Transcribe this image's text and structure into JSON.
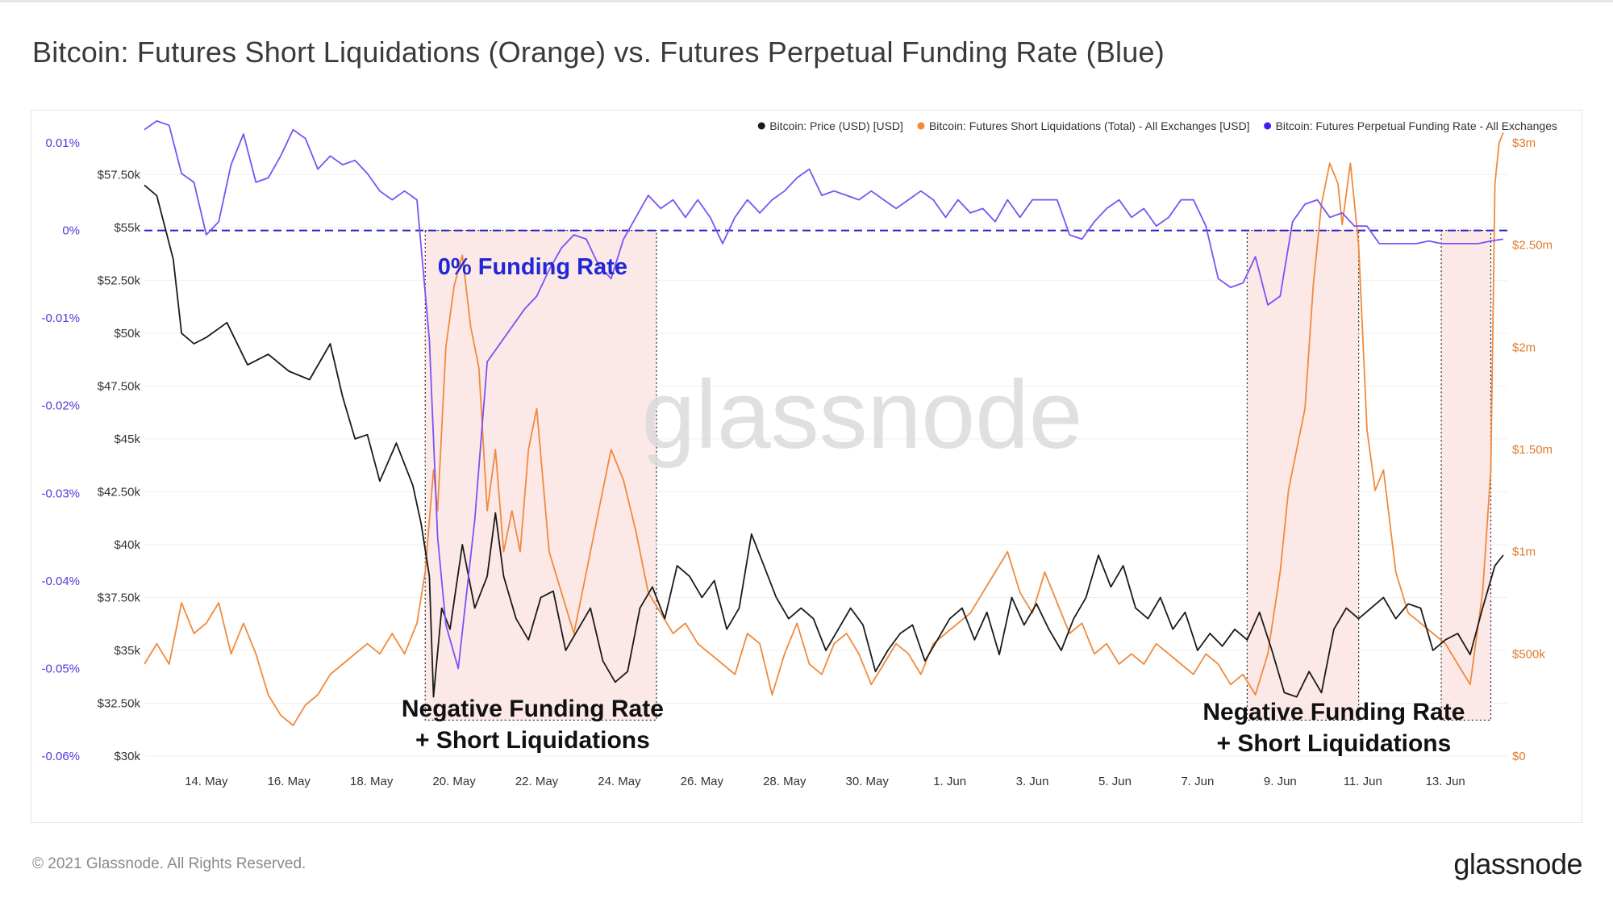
{
  "title": "Bitcoin: Futures Short Liquidations (Orange) vs. Futures Perpetual Funding Rate (Blue)",
  "footer": {
    "copyright": "© 2021 Glassnode. All Rights Reserved.",
    "logo": "glassnode"
  },
  "watermark": "glassnode",
  "colors": {
    "price": "#1a1a1a",
    "liquidations": "#f08a3c",
    "funding": "#7b52f5",
    "zero_line": "#2626c8",
    "shade": "#fde8e8",
    "annotation_blue": "#1f28d6"
  },
  "chart_data": {
    "type": "line",
    "title": "Bitcoin: Futures Short Liquidations (Orange) vs. Futures Perpetual Funding Rate (Blue)",
    "x_tick_labels": [
      "14. May",
      "16. May",
      "18. May",
      "20. May",
      "22. May",
      "24. May",
      "26. May",
      "28. May",
      "30. May",
      "1. Jun",
      "3. Jun",
      "5. Jun",
      "7. Jun",
      "9. Jun",
      "11. Jun",
      "13. Jun"
    ],
    "x_range": [
      12.5,
      45.5
    ],
    "x_note": "x values are days counted from May 1 (14. May = 14, 1. Jun = 32)",
    "axes": {
      "price": {
        "range": [
          30000,
          59000
        ],
        "ticks": [
          30000,
          32500,
          35000,
          37500,
          40000,
          42500,
          45000,
          47500,
          50000,
          52500,
          55000,
          57500
        ],
        "tick_labels": [
          "$30k",
          "$32.50k",
          "$35k",
          "$37.50k",
          "$40k",
          "$42.50k",
          "$45k",
          "$47.50k",
          "$50k",
          "$52.50k",
          "$55k",
          "$57.50k"
        ]
      },
      "funding": {
        "range": [
          -0.06,
          0.01
        ],
        "ticks": [
          -0.06,
          -0.05,
          -0.04,
          -0.03,
          -0.02,
          -0.01,
          0,
          0.01
        ],
        "tick_labels": [
          "-0.06%",
          "-0.05%",
          "-0.04%",
          "-0.03%",
          "-0.02%",
          "-0.01%",
          "0%",
          "0.01%"
        ]
      },
      "liquidations": {
        "range": [
          0,
          3000000
        ],
        "ticks": [
          0,
          500000,
          1000000,
          1500000,
          2000000,
          2500000,
          3000000
        ],
        "tick_labels": [
          "$0",
          "$500k",
          "$1m",
          "$1.50m",
          "$2m",
          "$2.50m",
          "$3m"
        ]
      }
    },
    "legend": [
      {
        "label": "Bitcoin: Price (USD) [USD]",
        "color": "#1a1a1a"
      },
      {
        "label": "Bitcoin: Futures Short Liquidations (Total) - All Exchanges [USD]",
        "color": "#f08a3c"
      },
      {
        "label": "Bitcoin: Futures Perpetual Funding Rate - All Exchanges",
        "color": "#3b22e8"
      }
    ],
    "series": [
      {
        "name": "Bitcoin: Price (USD) [USD]",
        "axis": "price",
        "x": [
          12.5,
          12.8,
          13.0,
          13.2,
          13.4,
          13.7,
          14.0,
          14.5,
          15.0,
          15.5,
          16.0,
          16.5,
          17.0,
          17.3,
          17.6,
          17.9,
          18.2,
          18.6,
          19.0,
          19.2,
          19.4,
          19.5,
          19.7,
          19.9,
          20.2,
          20.5,
          20.8,
          21.0,
          21.2,
          21.5,
          21.8,
          22.1,
          22.4,
          22.7,
          23.0,
          23.3,
          23.6,
          23.9,
          24.2,
          24.5,
          24.8,
          25.1,
          25.4,
          25.7,
          26.0,
          26.3,
          26.6,
          26.9,
          27.2,
          27.5,
          27.8,
          28.1,
          28.4,
          28.7,
          29.0,
          29.3,
          29.6,
          29.9,
          30.2,
          30.5,
          30.8,
          31.1,
          31.4,
          31.7,
          32.0,
          32.3,
          32.6,
          32.9,
          33.2,
          33.5,
          33.8,
          34.1,
          34.4,
          34.7,
          35.0,
          35.3,
          35.6,
          35.9,
          36.2,
          36.5,
          36.8,
          37.1,
          37.4,
          37.7,
          38.0,
          38.3,
          38.6,
          38.9,
          39.2,
          39.5,
          39.8,
          40.1,
          40.4,
          40.7,
          41.0,
          41.3,
          41.6,
          41.9,
          42.2,
          42.5,
          42.8,
          43.1,
          43.4,
          43.7,
          44.0,
          44.3,
          44.6,
          44.9,
          45.2,
          45.4
        ],
        "y": [
          57000,
          56500,
          55000,
          53500,
          50000,
          49500,
          49800,
          50500,
          48500,
          49000,
          48200,
          47800,
          49500,
          47000,
          45000,
          45200,
          43000,
          44800,
          42800,
          41000,
          38500,
          32800,
          37000,
          36000,
          40000,
          37000,
          38500,
          41500,
          38500,
          36500,
          35500,
          37500,
          37800,
          35000,
          36000,
          37000,
          34500,
          33500,
          34000,
          37000,
          38000,
          36500,
          39000,
          38500,
          37500,
          38300,
          36000,
          37000,
          40500,
          39000,
          37500,
          36500,
          37000,
          36500,
          35000,
          36000,
          37000,
          36200,
          34000,
          35000,
          35800,
          36200,
          34500,
          35500,
          36500,
          37000,
          35500,
          36800,
          34800,
          37500,
          36200,
          37200,
          36000,
          35000,
          36500,
          37500,
          39500,
          38000,
          39000,
          37000,
          36500,
          37500,
          36000,
          36800,
          35000,
          35800,
          35200,
          36000,
          35500,
          36800,
          35000,
          33000,
          32800,
          34000,
          33000,
          36000,
          37000,
          36500,
          37000,
          37500,
          36500,
          37200,
          37000,
          35000,
          35500,
          35800,
          34800,
          37000,
          39000,
          39500
        ]
      },
      {
        "name": "Bitcoin: Futures Short Liquidations (Total) - All Exchanges [USD]",
        "axis": "liquidations",
        "x": [
          12.5,
          12.8,
          13.1,
          13.4,
          13.7,
          14.0,
          14.3,
          14.6,
          14.9,
          15.2,
          15.5,
          15.8,
          16.1,
          16.4,
          16.7,
          17.0,
          17.3,
          17.6,
          17.9,
          18.2,
          18.5,
          18.8,
          19.1,
          19.3,
          19.5,
          19.6,
          19.8,
          20.0,
          20.2,
          20.4,
          20.6,
          20.8,
          21.0,
          21.2,
          21.4,
          21.6,
          21.8,
          22.0,
          22.3,
          22.6,
          22.9,
          23.2,
          23.5,
          23.8,
          24.1,
          24.4,
          24.7,
          25.0,
          25.3,
          25.6,
          25.9,
          26.2,
          26.5,
          26.8,
          27.1,
          27.4,
          27.7,
          28.0,
          28.3,
          28.6,
          28.9,
          29.2,
          29.5,
          29.8,
          30.1,
          30.4,
          30.7,
          31.0,
          31.3,
          31.6,
          31.9,
          32.2,
          32.5,
          32.8,
          33.1,
          33.4,
          33.7,
          34.0,
          34.3,
          34.6,
          34.9,
          35.2,
          35.5,
          35.8,
          36.1,
          36.4,
          36.7,
          37.0,
          37.3,
          37.6,
          37.9,
          38.2,
          38.5,
          38.8,
          39.1,
          39.4,
          39.7,
          40.0,
          40.2,
          40.4,
          40.6,
          40.8,
          41.0,
          41.2,
          41.4,
          41.5,
          41.7,
          41.9,
          42.1,
          42.3,
          42.5,
          42.8,
          43.1,
          43.4,
          43.7,
          44.0,
          44.3,
          44.6,
          44.9,
          45.1,
          45.2,
          45.3,
          45.4
        ],
        "y": [
          450000,
          550000,
          450000,
          750000,
          600000,
          650000,
          750000,
          500000,
          650000,
          500000,
          300000,
          200000,
          150000,
          250000,
          300000,
          400000,
          450000,
          500000,
          550000,
          500000,
          600000,
          500000,
          650000,
          900000,
          1400000,
          1200000,
          2000000,
          2300000,
          2450000,
          2100000,
          1900000,
          1200000,
          1500000,
          1000000,
          1200000,
          1000000,
          1500000,
          1700000,
          1000000,
          800000,
          600000,
          900000,
          1200000,
          1500000,
          1350000,
          1100000,
          800000,
          700000,
          600000,
          650000,
          550000,
          500000,
          450000,
          400000,
          600000,
          550000,
          300000,
          500000,
          650000,
          450000,
          400000,
          550000,
          600000,
          500000,
          350000,
          450000,
          550000,
          500000,
          400000,
          550000,
          600000,
          650000,
          700000,
          800000,
          900000,
          1000000,
          800000,
          700000,
          900000,
          750000,
          600000,
          650000,
          500000,
          550000,
          450000,
          500000,
          450000,
          550000,
          500000,
          450000,
          400000,
          500000,
          450000,
          350000,
          400000,
          300000,
          500000,
          900000,
          1300000,
          1500000,
          1700000,
          2300000,
          2700000,
          2900000,
          2800000,
          2600000,
          2900000,
          2500000,
          1600000,
          1300000,
          1400000,
          900000,
          700000,
          650000,
          600000,
          550000,
          450000,
          350000,
          800000,
          1400000,
          2800000,
          3000000,
          3050000
        ]
      },
      {
        "name": "Bitcoin: Futures Perpetual Funding Rate - All Exchanges",
        "axis": "funding",
        "x": [
          12.5,
          12.8,
          13.1,
          13.4,
          13.7,
          14.0,
          14.3,
          14.6,
          14.9,
          15.2,
          15.5,
          15.8,
          16.1,
          16.4,
          16.7,
          17.0,
          17.3,
          17.6,
          17.9,
          18.2,
          18.5,
          18.8,
          19.1,
          19.4,
          19.6,
          19.8,
          20.1,
          20.5,
          20.8,
          21.1,
          21.4,
          21.7,
          22.0,
          22.3,
          22.6,
          22.9,
          23.2,
          23.5,
          23.8,
          24.1,
          24.4,
          24.7,
          25.0,
          25.3,
          25.6,
          25.9,
          26.2,
          26.5,
          26.8,
          27.1,
          27.4,
          27.7,
          28.0,
          28.3,
          28.6,
          28.9,
          29.2,
          29.5,
          29.8,
          30.1,
          30.4,
          30.7,
          31.0,
          31.3,
          31.6,
          31.9,
          32.2,
          32.5,
          32.8,
          33.1,
          33.4,
          33.7,
          34.0,
          34.3,
          34.6,
          34.9,
          35.2,
          35.5,
          35.8,
          36.1,
          36.4,
          36.7,
          37.0,
          37.3,
          37.6,
          37.9,
          38.2,
          38.5,
          38.8,
          39.1,
          39.4,
          39.7,
          40.0,
          40.3,
          40.6,
          40.9,
          41.2,
          41.5,
          41.8,
          42.1,
          42.4,
          42.7,
          43.0,
          43.3,
          43.6,
          43.9,
          44.2,
          44.5,
          44.8,
          45.1,
          45.4
        ],
        "y": [
          0.0115,
          0.0125,
          0.012,
          0.0065,
          0.0055,
          -0.0005,
          0.001,
          0.0075,
          0.011,
          0.0055,
          0.006,
          0.0085,
          0.0115,
          0.0105,
          0.007,
          0.0085,
          0.0075,
          0.008,
          0.0065,
          0.0045,
          0.0035,
          0.0045,
          0.0035,
          -0.0125,
          -0.035,
          -0.045,
          -0.05,
          -0.033,
          -0.015,
          -0.013,
          -0.011,
          -0.009,
          -0.0075,
          -0.0045,
          -0.002,
          -0.0005,
          -0.001,
          -0.004,
          -0.0055,
          -0.001,
          0.0015,
          0.004,
          0.0025,
          0.0035,
          0.0015,
          0.0035,
          0.0015,
          -0.0015,
          0.0015,
          0.0035,
          0.002,
          0.0035,
          0.0045,
          0.006,
          0.007,
          0.004,
          0.0045,
          0.004,
          0.0035,
          0.0045,
          0.0035,
          0.0025,
          0.0035,
          0.0045,
          0.0035,
          0.0015,
          0.0035,
          0.002,
          0.0025,
          0.001,
          0.0035,
          0.0015,
          0.0035,
          0.0035,
          0.0035,
          -0.0005,
          -0.001,
          0.001,
          0.0025,
          0.0035,
          0.0015,
          0.0025,
          0.0005,
          0.0015,
          0.0035,
          0.0035,
          0.0005,
          -0.0055,
          -0.0065,
          -0.006,
          -0.003,
          -0.0085,
          -0.0075,
          0.001,
          0.003,
          0.0035,
          0.0015,
          0.002,
          0.0005,
          0.0005,
          -0.0015,
          -0.0015,
          -0.0015,
          -0.0015,
          -0.0012,
          -0.0015,
          -0.0015,
          -0.0015,
          -0.0015,
          -0.0012,
          -0.001
        ]
      }
    ],
    "shaded_regions": [
      {
        "x_start": 19.3,
        "x_end": 24.9,
        "label_line1": "Negative Funding Rate",
        "label_line2": "+ Short Liquidations"
      },
      {
        "x_start": 39.2,
        "x_end": 41.9,
        "label_line1": "Negative Funding Rate",
        "label_line2": "+ Short Liquidations"
      },
      {
        "x_start": 43.9,
        "x_end": 45.1,
        "label_line1": "",
        "label_line2": ""
      }
    ],
    "reference_line": {
      "axis": "funding",
      "value": 0,
      "label": "0% Funding Rate"
    },
    "grid": true,
    "legend_position": "top-right"
  }
}
